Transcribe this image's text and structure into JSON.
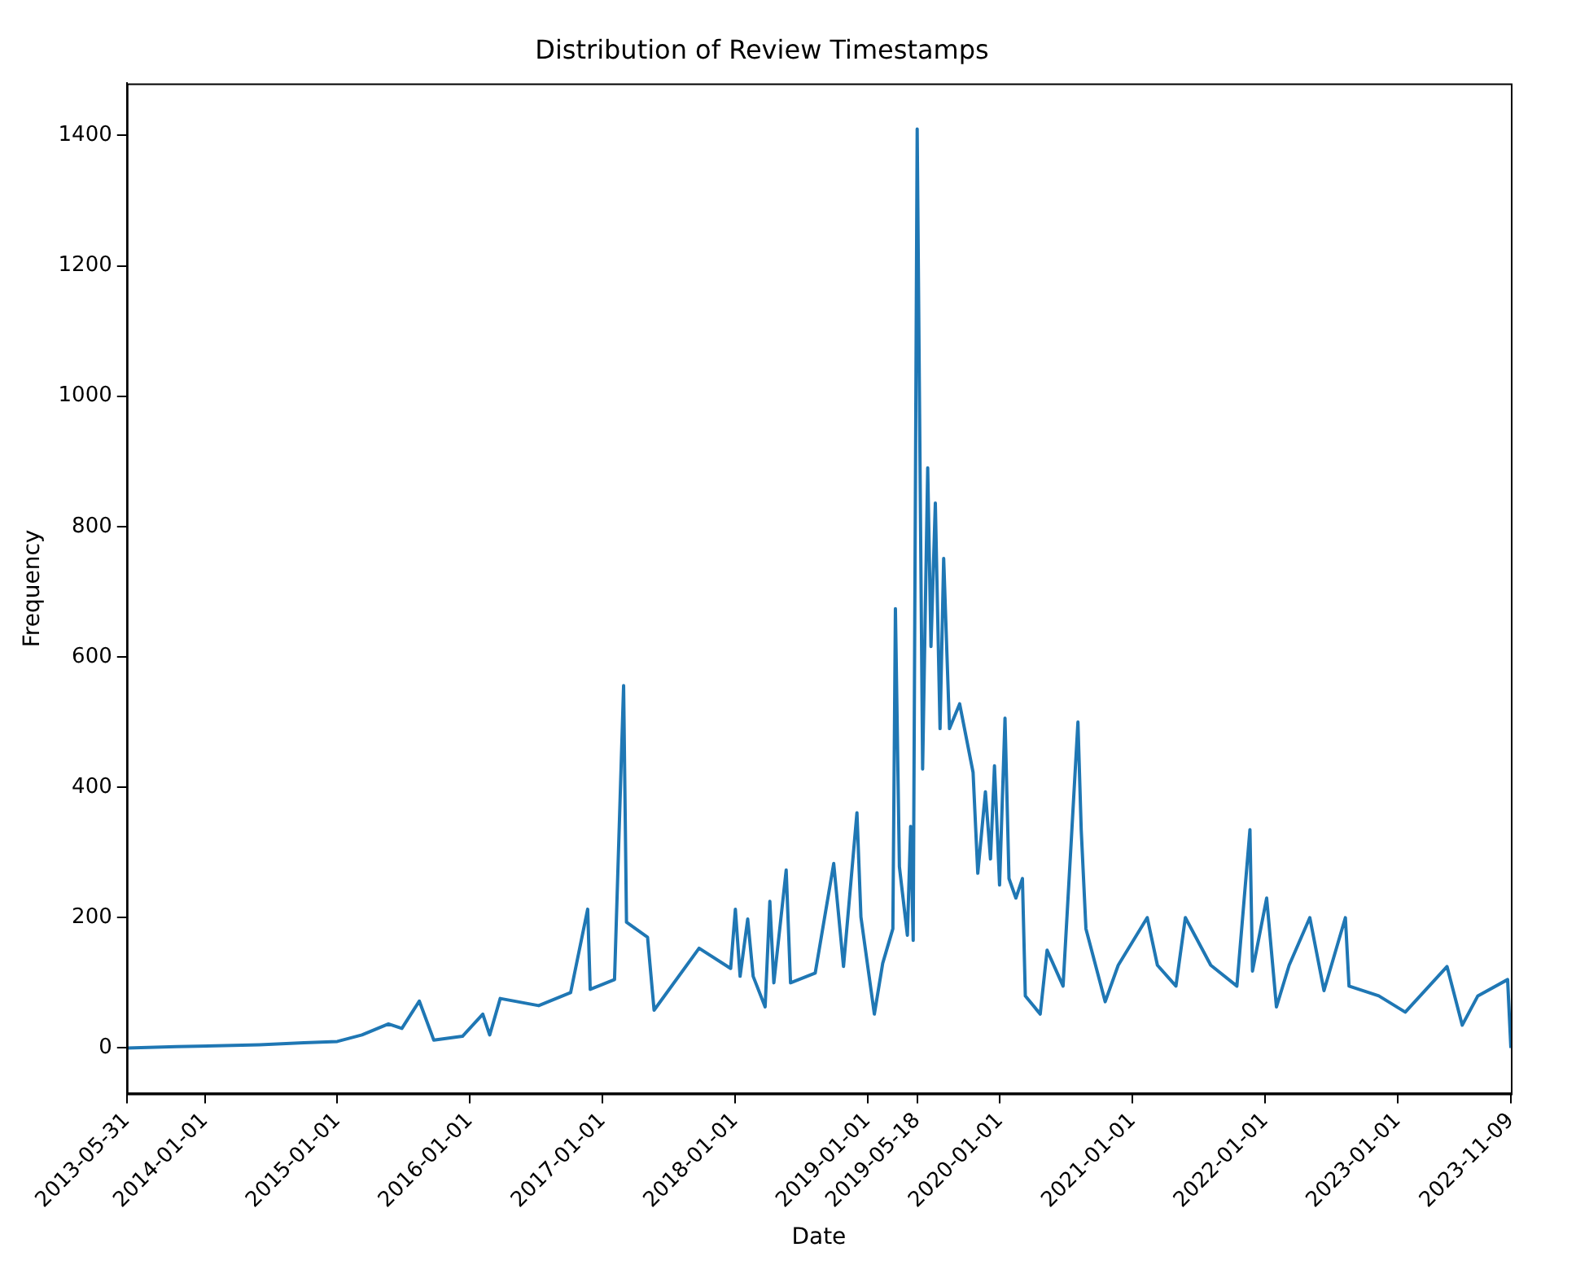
{
  "chart_data": {
    "type": "line",
    "title": "Distribution of Review Timestamps",
    "xlabel": "Date",
    "ylabel": "Frequency",
    "x": [
      "2013-05-31",
      "2013-10-15",
      "2014-06-01",
      "2014-10-01",
      "2015-01-01",
      "2015-03-10",
      "2015-05-22",
      "2015-06-28",
      "2015-08-15",
      "2015-09-24",
      "2015-12-12",
      "2016-02-06",
      "2016-02-25",
      "2016-03-25",
      "2016-07-09",
      "2016-10-05",
      "2016-11-21",
      "2016-11-28",
      "2017-02-03",
      "2017-02-28",
      "2017-03-08",
      "2017-05-05",
      "2017-05-23",
      "2017-09-24",
      "2017-12-20",
      "2018-01-02",
      "2018-01-15",
      "2018-02-05",
      "2018-02-20",
      "2018-03-25",
      "2018-04-07",
      "2018-04-18",
      "2018-05-22",
      "2018-06-03",
      "2018-08-10",
      "2018-09-30",
      "2018-10-27",
      "2018-12-03",
      "2018-12-14",
      "2019-01-20",
      "2019-02-12",
      "2019-03-12",
      "2019-03-19",
      "2019-03-30",
      "2019-04-21",
      "2019-04-30",
      "2019-05-07",
      "2019-05-18",
      "2019-06-02",
      "2019-06-16",
      "2019-06-25",
      "2019-07-07",
      "2019-07-20",
      "2019-07-30",
      "2019-08-15",
      "2019-09-12",
      "2019-10-19",
      "2019-11-01",
      "2019-11-22",
      "2019-12-06",
      "2019-12-17",
      "2019-12-31",
      "2020-01-15",
      "2020-01-26",
      "2020-02-14",
      "2020-03-03",
      "2020-03-11",
      "2020-04-21",
      "2020-05-10",
      "2020-06-23",
      "2020-08-03",
      "2020-08-12",
      "2020-08-25",
      "2020-10-17",
      "2020-11-22",
      "2021-02-10",
      "2021-03-10",
      "2021-04-30",
      "2021-05-26",
      "2021-08-04",
      "2021-10-15",
      "2021-11-20",
      "2021-11-27",
      "2022-01-05",
      "2022-02-01",
      "2022-03-08",
      "2022-05-04",
      "2022-06-12",
      "2022-08-10",
      "2022-08-20",
      "2022-11-10",
      "2023-01-22",
      "2023-05-17",
      "2023-06-28",
      "2023-08-10",
      "2023-10-31",
      "2023-11-09"
    ],
    "series": [
      {
        "color": "#1f77b4",
        "values": [
          0,
          2,
          5,
          8,
          10,
          20,
          37,
          30,
          72,
          12,
          18,
          52,
          20,
          76,
          65,
          85,
          213,
          90,
          105,
          556,
          193,
          170,
          58,
          153,
          122,
          213,
          110,
          198,
          110,
          63,
          225,
          100,
          273,
          100,
          115,
          283,
          125,
          361,
          201,
          52,
          130,
          183,
          674,
          278,
          173,
          340,
          165,
          1410,
          428,
          890,
          616,
          836,
          490,
          751,
          490,
          528,
          423,
          268,
          393,
          290,
          433,
          250,
          506,
          260,
          230,
          260,
          80,
          52,
          150,
          95,
          500,
          335,
          183,
          71,
          127,
          200,
          127,
          95,
          200,
          127,
          95,
          335,
          118,
          230,
          63,
          127,
          200,
          88,
          200,
          95,
          80,
          55,
          125,
          35,
          80,
          105,
          0
        ]
      }
    ],
    "xlim": [
      "2013-05-31",
      "2023-11-09"
    ],
    "xticks": [
      "2013-05-31",
      "2014-01-01",
      "2015-01-01",
      "2016-01-01",
      "2017-01-01",
      "2018-01-01",
      "2019-01-01",
      "2019-05-18",
      "2020-01-01",
      "2021-01-01",
      "2022-01-01",
      "2023-01-01",
      "2023-11-09"
    ],
    "ylim": [
      -70,
      1480
    ],
    "yticks": [
      0,
      200,
      400,
      600,
      800,
      1000,
      1200,
      1400
    ],
    "grid": false,
    "legend": false,
    "marker": "none",
    "line_style": "solid"
  }
}
